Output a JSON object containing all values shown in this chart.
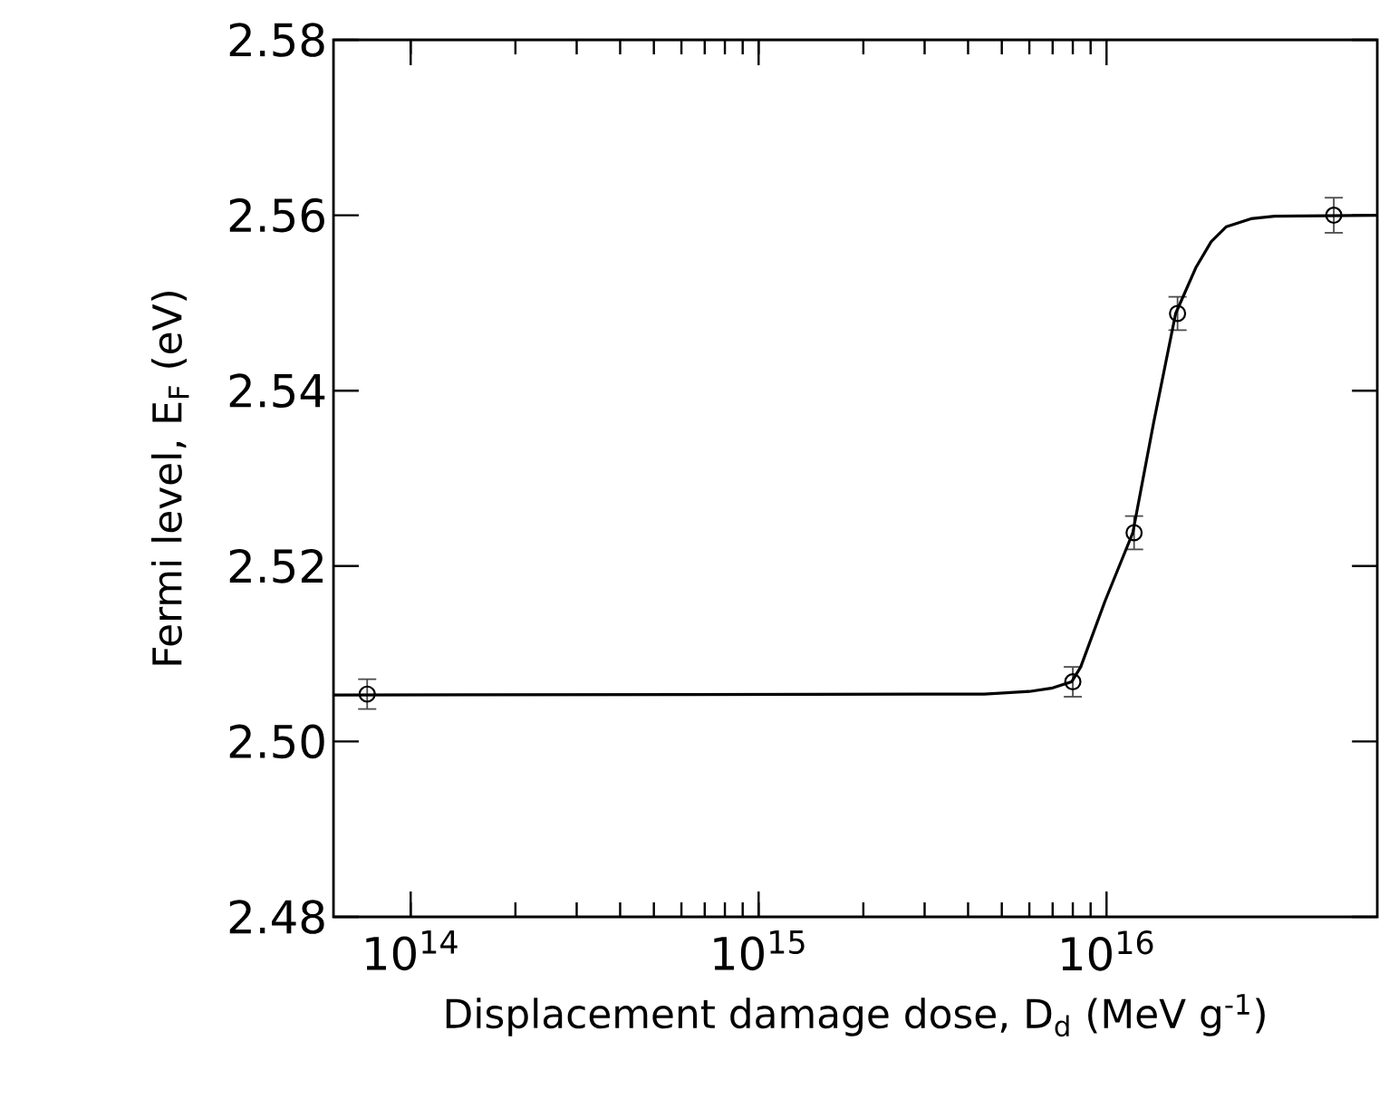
{
  "chart_data": {
    "type": "scatter",
    "xlabel": "Displacement damage dose, D$_{d}$ (MeV g$^{-1}$)",
    "ylabel": "Fermi level, E$_{F}$ (eV)",
    "log": "x",
    "xlim": [
      60000000000000.0,
      6e+16
    ],
    "ylim": [
      2.48,
      2.58
    ],
    "xticks": [
      {
        "value": 100000000000000.0,
        "label": "10$^{14}$"
      },
      {
        "value": 1000000000000000.0,
        "label": "10$^{15}$"
      },
      {
        "value": 1e+16,
        "label": "10$^{16}$"
      }
    ],
    "yticks": [
      {
        "value": 2.48,
        "label": "2.48"
      },
      {
        "value": 2.5,
        "label": "2.50"
      },
      {
        "value": 2.52,
        "label": "2.52"
      },
      {
        "value": 2.54,
        "label": "2.54"
      },
      {
        "value": 2.56,
        "label": "2.56"
      },
      {
        "value": 2.58,
        "label": "2.58"
      }
    ],
    "grid": false,
    "series": [
      {
        "color": "#000000",
        "marker": "circle",
        "x": [
          75000000000000.0,
          8000000000000000.0,
          1.2e+16,
          1.6e+16,
          4.5e+16
        ],
        "values": [
          2.5054,
          2.5068,
          2.5238,
          2.5488,
          2.56
        ],
        "errors": [
          0.0017,
          0.0017,
          0.0019,
          0.0019,
          0.002
        ]
      },
      {
        "type": "line",
        "color": "#000000",
        "marker": "none",
        "line_style": "solid",
        "x": [
          60000000000000.0,
          4450000000000000.0,
          6000000000000000.0,
          7000000000000000.0,
          7940000000000000.0,
          8430000000000000.0,
          9900000000000000.0,
          1.19e+16,
          1.365e+16,
          1.58e+16,
          1.81e+16,
          2e+16,
          2.21e+16,
          2.6e+16,
          3.04e+16,
          6e+16
        ],
        "values": [
          2.5053,
          2.5054,
          2.5057,
          2.5061,
          2.5068,
          2.5085,
          2.516,
          2.5238,
          2.5363,
          2.5488,
          2.5541,
          2.557,
          2.5587,
          2.5596,
          2.5599,
          2.56
        ]
      }
    ]
  }
}
